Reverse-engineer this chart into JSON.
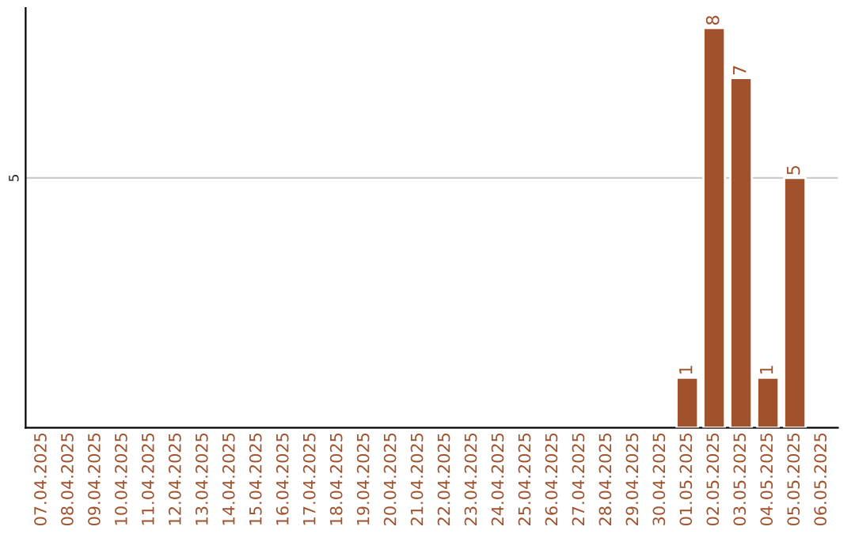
{
  "chart_data": {
    "type": "bar",
    "categories": [
      "07.04.2025",
      "08.04.2025",
      "09.04.2025",
      "10.04.2025",
      "11.04.2025",
      "12.04.2025",
      "13.04.2025",
      "14.04.2025",
      "15.04.2025",
      "16.04.2025",
      "17.04.2025",
      "18.04.2025",
      "19.04.2025",
      "20.04.2025",
      "21.04.2025",
      "22.04.2025",
      "23.04.2025",
      "24.04.2025",
      "25.04.2025",
      "26.04.2025",
      "27.04.2025",
      "28.04.2025",
      "29.04.2025",
      "30.04.2025",
      "01.05.2025",
      "02.05.2025",
      "03.05.2025",
      "04.05.2025",
      "05.05.2025",
      "06.05.2025"
    ],
    "values": [
      null,
      null,
      null,
      null,
      null,
      null,
      null,
      null,
      null,
      null,
      null,
      null,
      null,
      null,
      null,
      null,
      null,
      null,
      null,
      null,
      null,
      null,
      null,
      null,
      1,
      8,
      7,
      1,
      5,
      null
    ],
    "value_labels": [
      null,
      null,
      null,
      null,
      null,
      null,
      null,
      null,
      null,
      null,
      null,
      null,
      null,
      null,
      null,
      null,
      null,
      null,
      null,
      null,
      null,
      null,
      null,
      null,
      "1",
      "8",
      "7",
      "1",
      "5",
      null
    ],
    "color": "#a0522d",
    "ylim": [
      0,
      8.4
    ],
    "yticks": [
      5
    ],
    "grid": "y",
    "legend": false
  }
}
